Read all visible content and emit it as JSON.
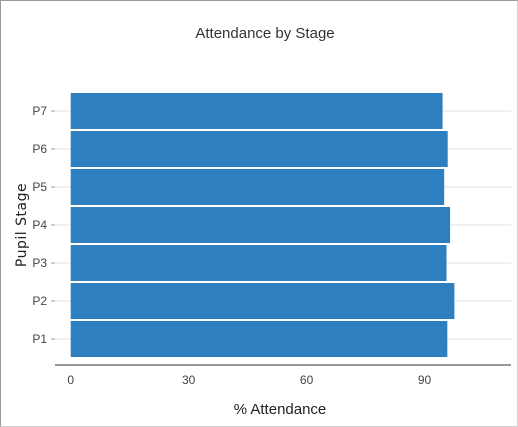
{
  "chart_data": {
    "type": "bar",
    "orientation": "horizontal",
    "title": "Attendance by Stage",
    "xlabel": "% Attendance",
    "ylabel": "Pupil Stage",
    "categories": [
      "P1",
      "P2",
      "P3",
      "P4",
      "P5",
      "P6",
      "P7"
    ],
    "values": [
      95.8,
      97.6,
      95.6,
      96.5,
      95.0,
      95.9,
      94.6
    ],
    "xlim": [
      -4,
      112
    ],
    "xticks": [
      0,
      30,
      60,
      90
    ],
    "grid": "y",
    "legend": "none",
    "colors": {
      "bar": "#2e7fbf",
      "grid": "#e3e3e3",
      "axis": "#333333"
    }
  }
}
